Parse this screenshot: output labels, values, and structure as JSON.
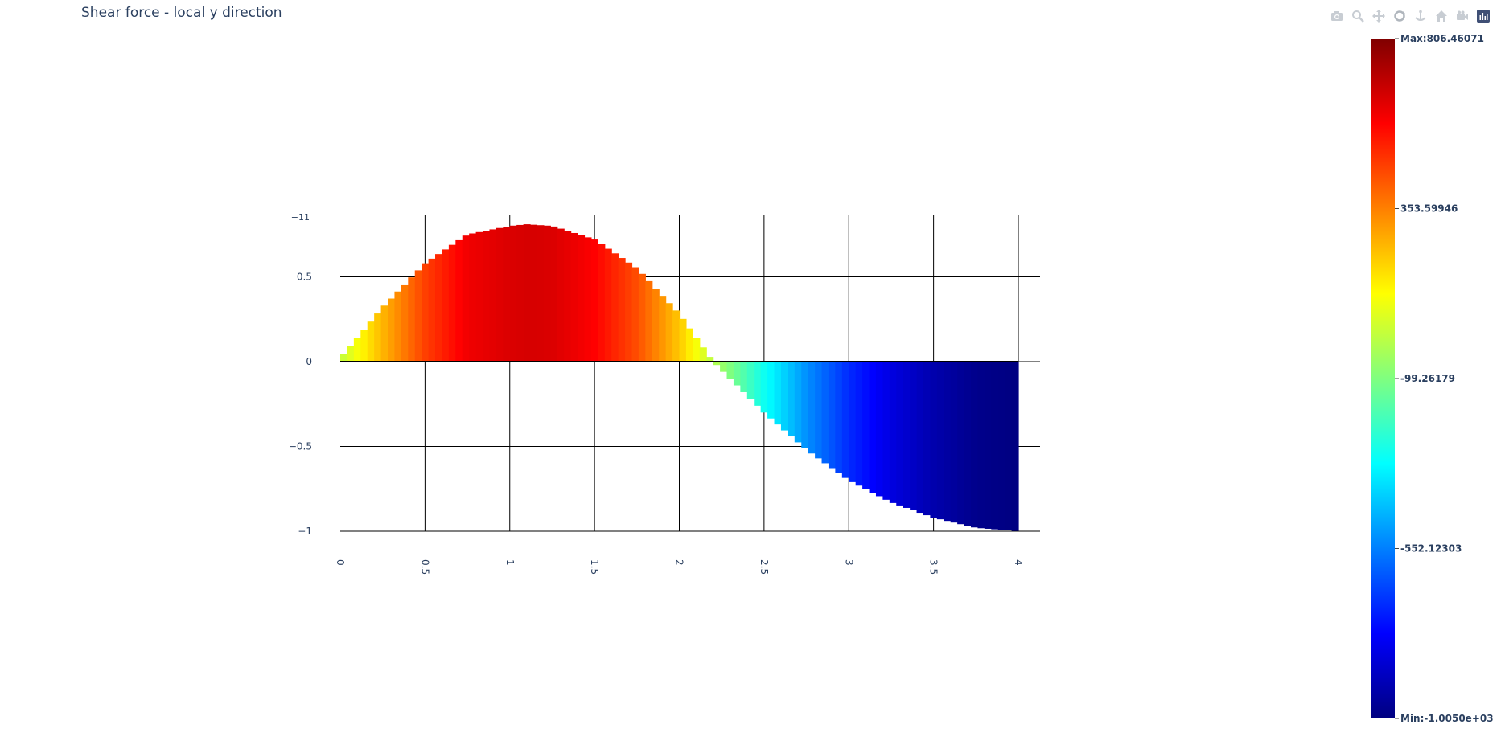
{
  "title": "Shear force - local y direction",
  "modebar": {
    "icons": [
      "camera-icon",
      "zoom-icon",
      "pan-icon",
      "orbit-icon",
      "turntable-icon",
      "home-icon",
      "video-camera-icon",
      "plotly-logo-icon"
    ]
  },
  "chart_data": {
    "type": "area",
    "title": "Shear force - local y direction",
    "xlabel": "",
    "ylabel": "",
    "x_range": [
      0,
      4
    ],
    "y_range": [
      -1,
      1
    ],
    "x_ticks": [
      "0",
      "0.5",
      "1",
      "1.5",
      "2",
      "2.5",
      "3",
      "3.5",
      "4"
    ],
    "y_ticks": [
      "−1",
      "−0.5",
      "0",
      "0.5"
    ],
    "y_top_overlap_label": "−11",
    "grid": true,
    "series": [
      {
        "shape_function": "normalized_shear_y",
        "x": [
          0,
          0.25,
          0.5,
          0.75,
          1.0,
          1.1,
          1.25,
          1.5,
          1.75,
          2.0,
          2.2,
          2.5,
          2.75,
          3.0,
          3.25,
          3.5,
          3.75,
          4.0
        ],
        "y": [
          0.02,
          0.32,
          0.58,
          0.75,
          0.8,
          0.81,
          0.8,
          0.72,
          0.55,
          0.28,
          0.0,
          -0.3,
          -0.52,
          -0.7,
          -0.83,
          -0.92,
          -0.98,
          -1.0
        ]
      }
    ],
    "colorscale": "jet",
    "colorbar": {
      "max_label": "Max:806.46071",
      "min_label": "Min:-1.0050e+03",
      "tick_labels": [
        "353.59946",
        "-99.26179",
        "-552.12303"
      ],
      "max_value": 806.46071,
      "min_value": -1005.0,
      "tick_values": [
        353.59946,
        -99.26179,
        -552.12303
      ]
    }
  }
}
